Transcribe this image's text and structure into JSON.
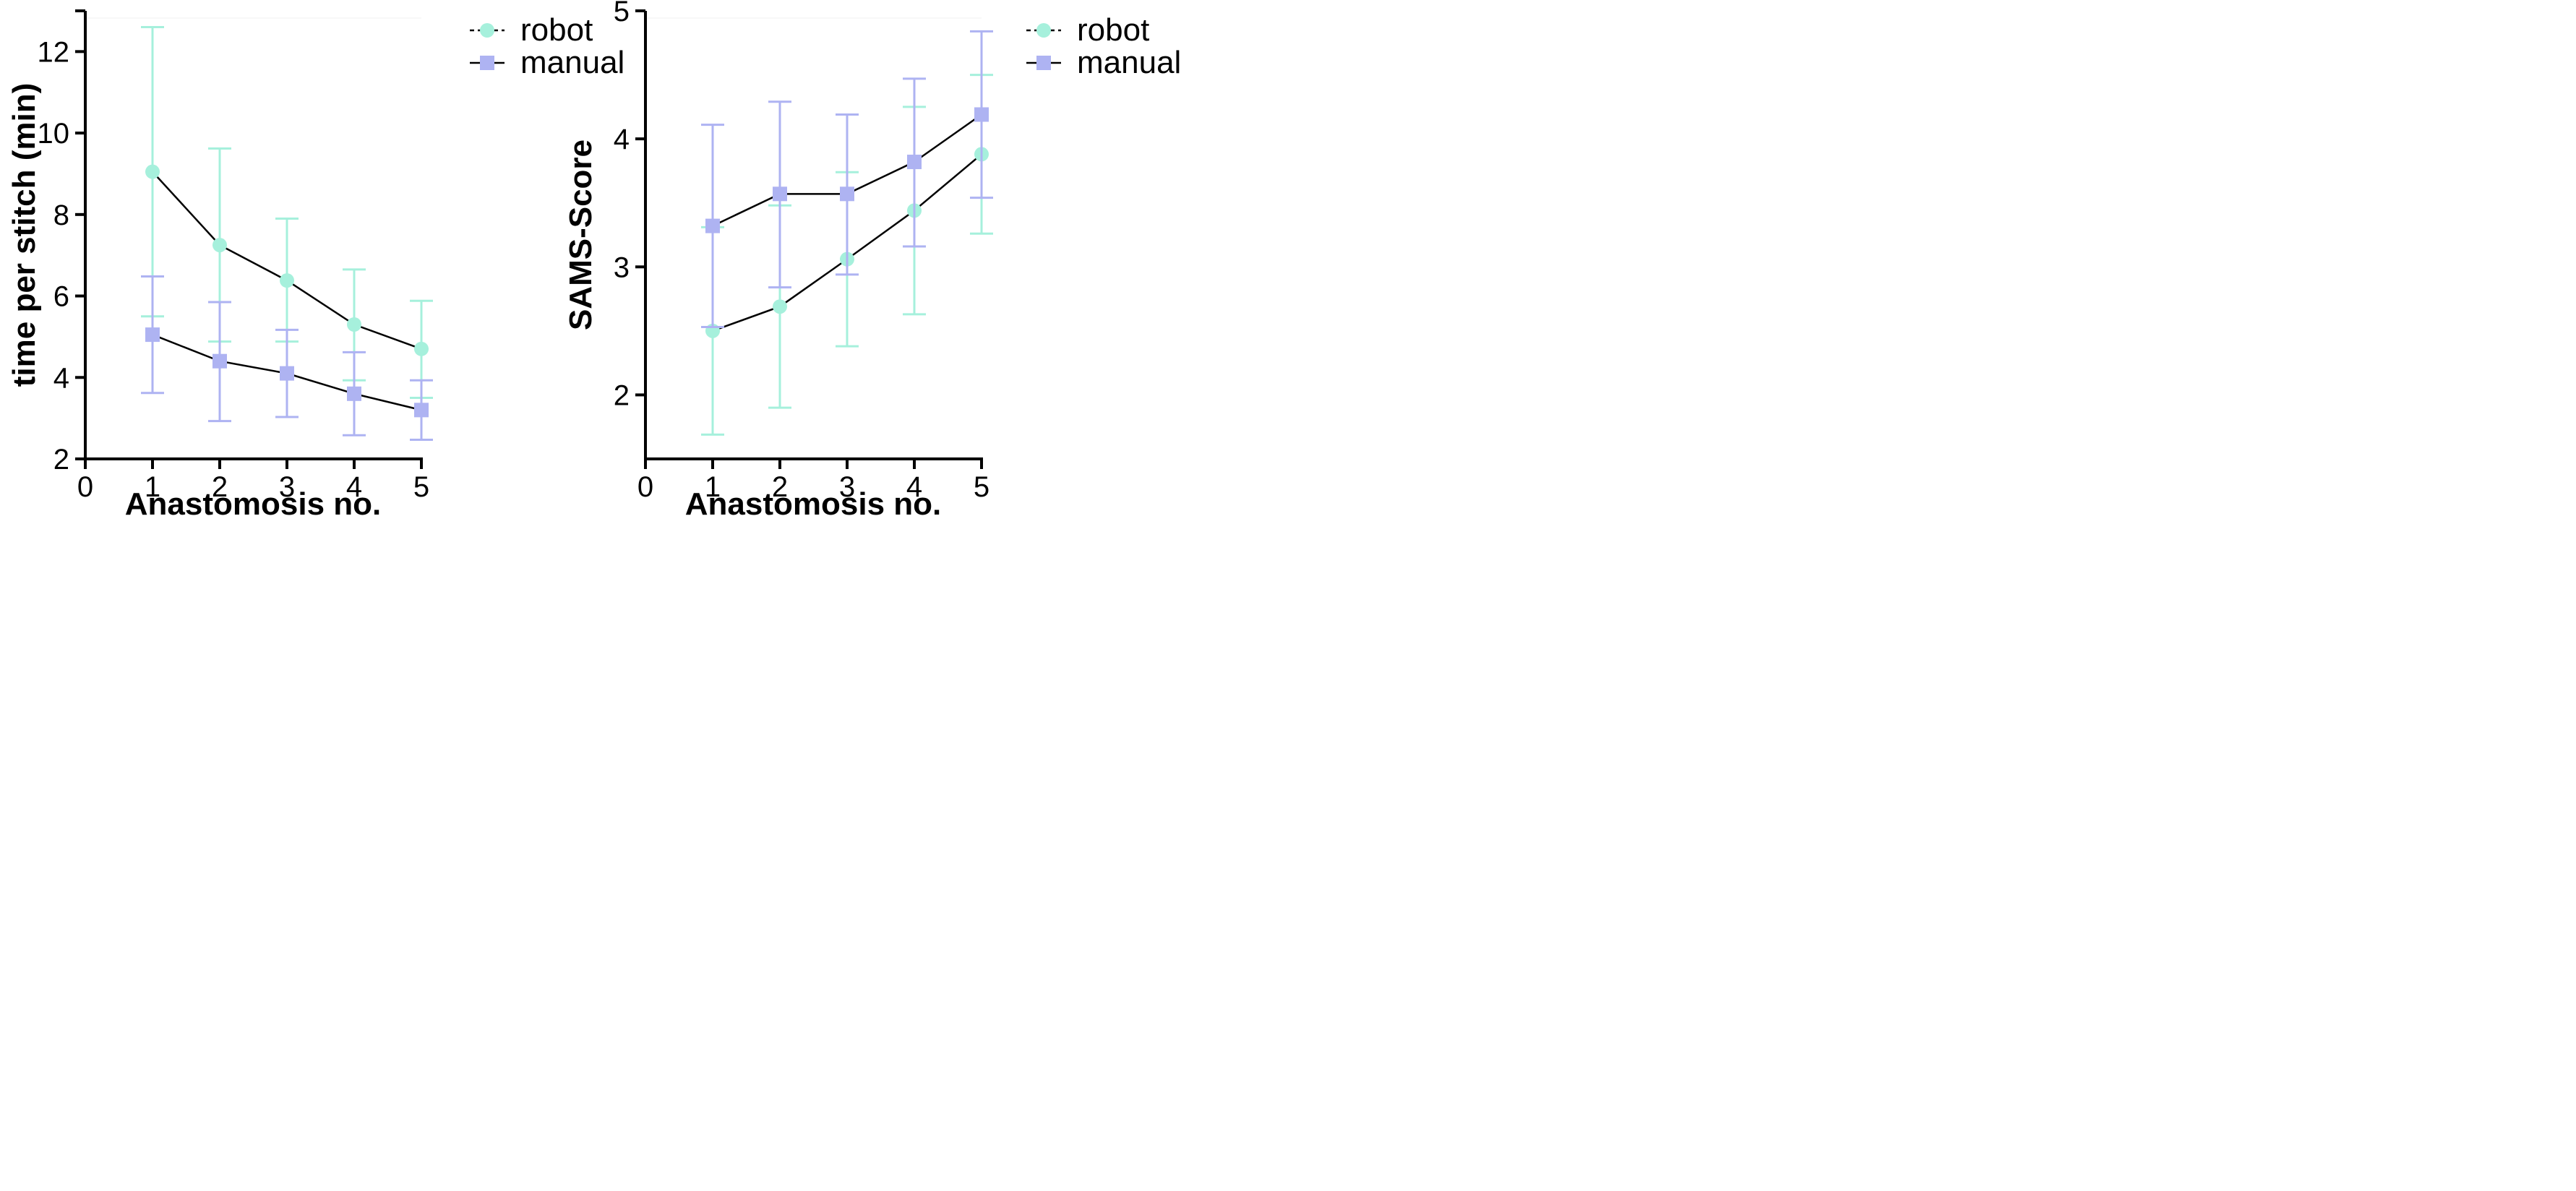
{
  "colors": {
    "robot": "#a6f0dc",
    "manual": "#aeb3f2",
    "line": "#000000",
    "axis": "#000000"
  },
  "legend": [
    {
      "key": "robot",
      "label": "robot",
      "marker": "circle",
      "line_style": "dashed"
    },
    {
      "key": "manual",
      "label": "manual",
      "marker": "square",
      "line_style": "solid"
    }
  ],
  "chart_data": [
    {
      "type": "line",
      "title": "",
      "xlabel": "Anastomosis no.",
      "ylabel": "time per stitch (min)",
      "xlim": [
        0,
        5
      ],
      "ylim": [
        2,
        13
      ],
      "x_ticks": [
        "0",
        "1",
        "2",
        "3",
        "4",
        "5"
      ],
      "y_ticks": [
        "2",
        "4",
        "6",
        "8",
        "10",
        "12"
      ],
      "legend_position": "top-right, outside",
      "x": [
        1,
        2,
        3,
        4,
        5
      ],
      "series": [
        {
          "name": "robot",
          "values": [
            9.05,
            7.25,
            6.38,
            5.3,
            4.7
          ],
          "err_upper": [
            12.6,
            9.62,
            7.9,
            6.65,
            5.88
          ],
          "err_lower": [
            5.5,
            4.88,
            4.88,
            3.93,
            3.5
          ]
        },
        {
          "name": "manual",
          "values": [
            5.05,
            4.4,
            4.1,
            3.6,
            3.2
          ],
          "err_upper": [
            6.48,
            5.85,
            5.17,
            4.62,
            3.93
          ],
          "err_lower": [
            3.62,
            2.93,
            3.03,
            2.58,
            2.47
          ]
        }
      ]
    },
    {
      "type": "line",
      "title": "",
      "xlabel": "Anastomosis no.",
      "ylabel": "SAMS-Score",
      "xlim": [
        0,
        5
      ],
      "ylim": [
        1.5,
        5
      ],
      "x_ticks": [
        "0",
        "1",
        "2",
        "3",
        "4",
        "5"
      ],
      "y_ticks": [
        "2",
        "3",
        "4",
        "5"
      ],
      "legend_position": "top-right, outside",
      "x": [
        1,
        2,
        3,
        4,
        5
      ],
      "series": [
        {
          "name": "robot",
          "values": [
            2.5,
            2.69,
            3.06,
            3.44,
            3.88
          ],
          "err_upper": [
            3.31,
            3.48,
            3.74,
            4.25,
            4.5
          ],
          "err_lower": [
            1.69,
            1.9,
            2.38,
            2.63,
            3.26
          ]
        },
        {
          "name": "manual",
          "values": [
            3.32,
            3.57,
            3.57,
            3.82,
            4.19
          ],
          "err_upper": [
            4.11,
            4.29,
            4.19,
            4.47,
            4.84
          ],
          "err_lower": [
            2.53,
            2.84,
            2.94,
            3.16,
            3.54
          ]
        }
      ]
    }
  ]
}
